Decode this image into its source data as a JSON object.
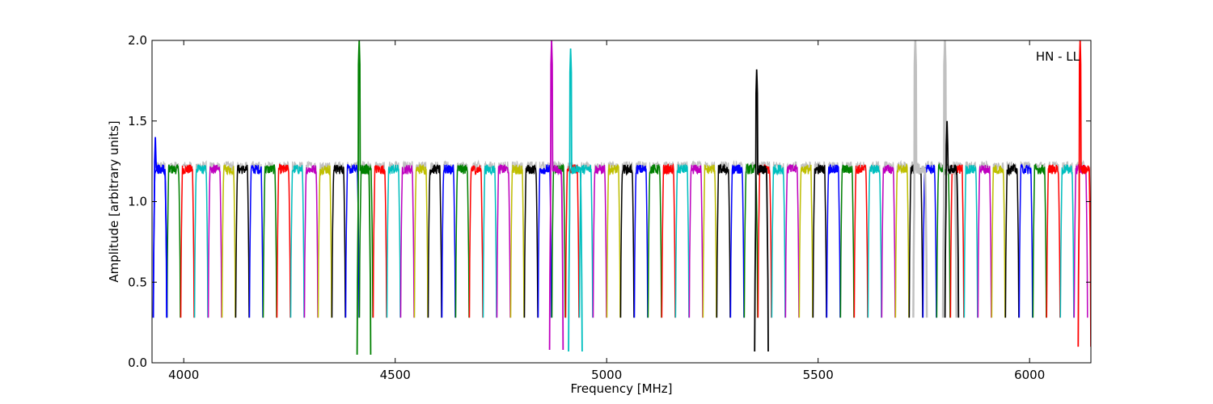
{
  "chart_data": {
    "type": "line",
    "xlabel": "Frequency [MHz]",
    "ylabel": "Amplitude [arbitrary units]",
    "xlim": [
      3925,
      6145
    ],
    "ylim": [
      0.0,
      2.0
    ],
    "xticks": [
      4000,
      4500,
      5000,
      5500,
      6000
    ],
    "yticks": [
      0.0,
      0.5,
      1.0,
      1.5,
      2.0
    ],
    "ytick_labels": [
      "0.0",
      "0.5",
      "1.0",
      "1.5",
      "2.0"
    ],
    "annotation": "HN - LL",
    "grid": false,
    "legend": "none",
    "colors": [
      "#0000ff",
      "#008000",
      "#ff0000",
      "#00bfbf",
      "#bf00bf",
      "#bfbf00",
      "#000000"
    ],
    "reference_color": "#c0c0c0",
    "channel": {
      "first_start_mhz": 3928,
      "spacing_mhz": 32.5,
      "count": 68,
      "baseline": 1.2,
      "edge_min": 0.28
    },
    "series": [
      {
        "start": 3928,
        "end": 3960,
        "peak": 1.4,
        "color": "#0000ff"
      },
      {
        "start": 4410,
        "end": 4442,
        "peak": 2.0,
        "min": 0.05,
        "color": "#008000"
      },
      {
        "start": 4865,
        "end": 4897,
        "peak": 2.0,
        "min": 0.08,
        "color": "#bf00bf"
      },
      {
        "start": 4910,
        "end": 4942,
        "peak": 1.95,
        "min": 0.07,
        "color": "#00bfbf"
      },
      {
        "start": 5350,
        "end": 5382,
        "peak": 1.82,
        "min": 0.07,
        "color": "#000000"
      },
      {
        "start": 5725,
        "end": 5757,
        "peak": 2.0,
        "color": "#c0c0c0"
      },
      {
        "start": 5795,
        "end": 5827,
        "peak": 2.0,
        "color": "#c0c0c0"
      },
      {
        "start": 5800,
        "end": 5832,
        "peak": 1.5,
        "color": "#000000"
      },
      {
        "start": 6115,
        "end": 6145,
        "peak": 2.0,
        "min": 0.1,
        "color": "#ff0000"
      }
    ]
  }
}
